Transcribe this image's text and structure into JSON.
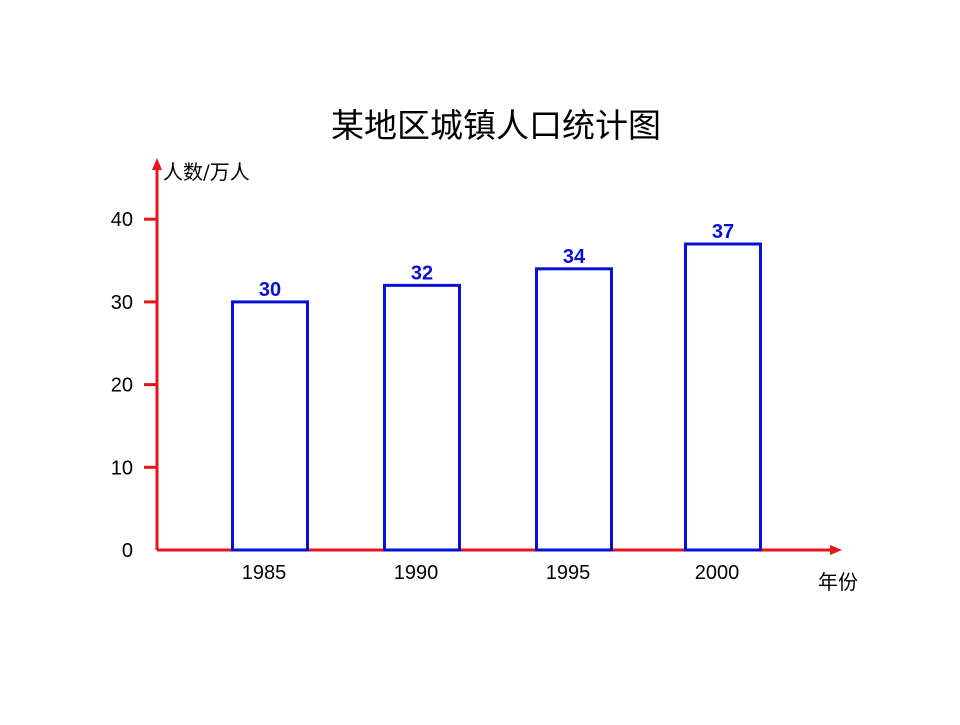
{
  "chart_data": {
    "type": "bar",
    "title": "某地区城镇人口统计图",
    "ylabel": "人数/万人",
    "xlabel": "年份",
    "categories": [
      "1985",
      "1990",
      "1995",
      "2000"
    ],
    "values": [
      30,
      32,
      34,
      37
    ],
    "data_labels": [
      "30",
      "32",
      "34",
      "37"
    ],
    "yticks": [
      0,
      10,
      20,
      30,
      40
    ],
    "ytick_labels": [
      "0",
      "10",
      "20",
      "30",
      "40"
    ],
    "ylim": [
      0,
      40
    ],
    "grid": false,
    "legend": "none",
    "bar_style": "outline",
    "colors": {
      "axis": "#e8121b",
      "bar": "#0a0fd6",
      "label": "#0a0fd6",
      "text": "#000000"
    }
  }
}
